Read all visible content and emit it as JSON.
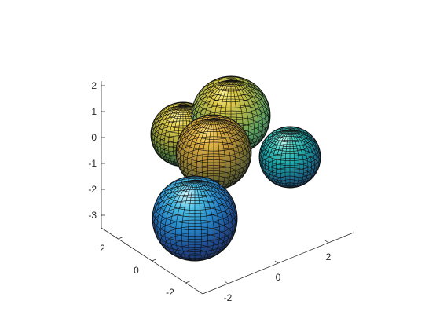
{
  "chart_data": {
    "type": "surface",
    "title": "",
    "xlabel": "",
    "ylabel": "",
    "zlabel": "",
    "xlim": [
      -3,
      3
    ],
    "ylim": [
      -3,
      3
    ],
    "zlim": [
      -3.5,
      2.2
    ],
    "view": "3-D perspective",
    "grid": false,
    "box": false,
    "colormap": "parula",
    "x_ticks": [
      -2,
      0,
      2
    ],
    "y_ticks": [
      -2,
      0,
      2
    ],
    "z_ticks": [
      -3,
      -2,
      -1,
      0,
      1,
      2
    ],
    "x_tick_labels": [
      "-2",
      "0",
      "2"
    ],
    "y_tick_labels": [
      "-2",
      "0",
      "2"
    ],
    "z_tick_labels": [
      "-3",
      "-2",
      "-1",
      "0",
      "1",
      "2"
    ],
    "spheres": [
      {
        "name": "",
        "center": [
          -1.5,
          1.5,
          0.0
        ],
        "radius": 1.0,
        "tint": "#b8b040"
      },
      {
        "name": "",
        "center": [
          0.0,
          0.5,
          1.0
        ],
        "radius": 1.3,
        "tint": "#b8b040"
      },
      {
        "name": "",
        "center": [
          -1.0,
          0.0,
          -0.5
        ],
        "radius": 1.2,
        "tint": "#c8a038"
      },
      {
        "name": "",
        "center": [
          2.0,
          -0.5,
          -0.8
        ],
        "radius": 1.0,
        "tint": "#20a0a0"
      },
      {
        "name": "",
        "center": [
          -1.5,
          -1.0,
          -2.5
        ],
        "radius": 1.3,
        "tint": "#2080c8"
      }
    ]
  }
}
